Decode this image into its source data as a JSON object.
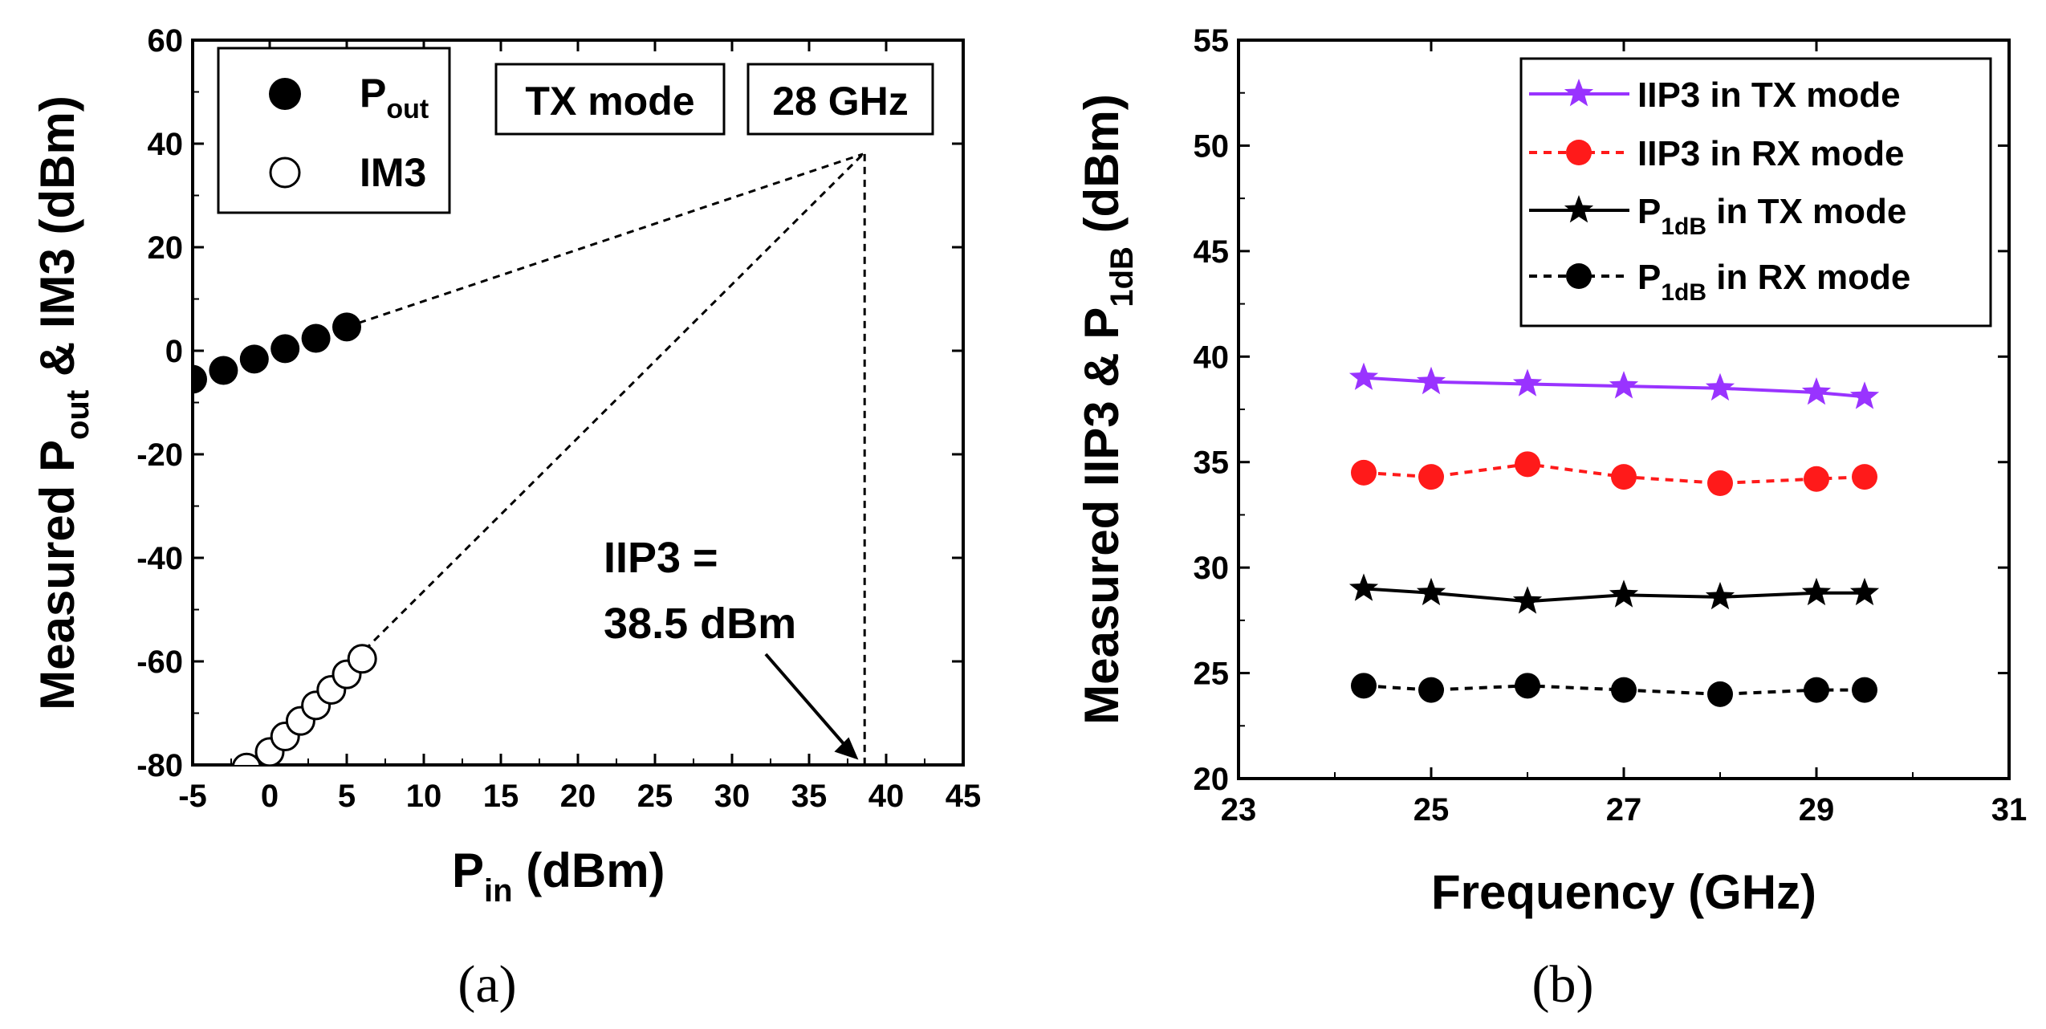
{
  "chart_data": [
    {
      "type": "scatter",
      "caption": "(a)",
      "xlabel": {
        "main": "P",
        "sub": "in",
        "unit": " (dBm)"
      },
      "ylabel": {
        "a": "Measured P",
        "sub": "out",
        "b": " & IM3 (dBm)"
      },
      "xlim": [
        -5,
        45
      ],
      "ylim": [
        -80,
        60
      ],
      "xticks": [
        -5,
        0,
        5,
        10,
        15,
        20,
        25,
        30,
        35,
        40,
        45
      ],
      "yticks": [
        -80,
        -60,
        -40,
        -20,
        0,
        20,
        40,
        60
      ],
      "legend": {
        "placement": "top-left",
        "entries": [
          {
            "main": "P",
            "sub": "out",
            "marker": "filled-circle"
          },
          {
            "main": "IM3",
            "sub": "",
            "marker": "open-circle"
          }
        ]
      },
      "labels_boxed": [
        "TX mode",
        "28 GHz"
      ],
      "series": [
        {
          "name": "Pout",
          "marker": "filled-circle",
          "x": [
            -5,
            -3,
            -1,
            1,
            3,
            5
          ],
          "y": [
            -5.5,
            -3.8,
            -1.6,
            0.4,
            2.4,
            4.6
          ]
        },
        {
          "name": "IM3",
          "marker": "open-circle",
          "x": [
            -1.5,
            0,
            1,
            2,
            3,
            4,
            5,
            6
          ],
          "y": [
            -80.5,
            -77.5,
            -74.5,
            -71.5,
            -68.5,
            -65.5,
            -62.5,
            -59.5
          ]
        }
      ],
      "intercept": {
        "x": 38.5,
        "y": 38
      },
      "annotation": {
        "line1": "IIP3 =",
        "line2": "38.5 dBm",
        "arrow_to": {
          "x": 38.2,
          "y": -79
        }
      }
    },
    {
      "type": "line",
      "caption": "(b)",
      "xlabel": "Frequency (GHz)",
      "ylabel": {
        "a": "Measured IIP3 & P",
        "sub": "1dB",
        "b": " (dBm)"
      },
      "xlim": [
        23,
        31
      ],
      "ylim": [
        20,
        55
      ],
      "xticks": [
        23,
        25,
        27,
        29,
        31
      ],
      "yticks": [
        20,
        25,
        30,
        35,
        40,
        45,
        50,
        55
      ],
      "legend": {
        "placement": "top-right"
      },
      "series": [
        {
          "name": "IIP3 in TX mode",
          "legend_main": "IIP3 in TX mode",
          "legend_sub": "",
          "legend_tail": "",
          "color": "#9933ff",
          "dash": "solid",
          "marker": "star",
          "x": [
            24.3,
            25,
            26,
            27,
            28,
            29,
            29.5
          ],
          "values": [
            39.0,
            38.8,
            38.7,
            38.6,
            38.5,
            38.3,
            38.1
          ]
        },
        {
          "name": "IIP3 in RX mode",
          "legend_main": "IIP3 in RX mode",
          "legend_sub": "",
          "legend_tail": "",
          "color": "#ff1a1a",
          "dash": "dashed",
          "marker": "circle",
          "x": [
            24.3,
            25,
            26,
            27,
            28,
            29,
            29.5
          ],
          "values": [
            34.5,
            34.3,
            34.9,
            34.3,
            34.0,
            34.2,
            34.3
          ]
        },
        {
          "name": "P1dB in TX mode",
          "legend_main": "P",
          "legend_sub": "1dB",
          "legend_tail": " in TX mode",
          "color": "#000000",
          "dash": "solid",
          "marker": "star",
          "x": [
            24.3,
            25,
            26,
            27,
            28,
            29,
            29.5
          ],
          "values": [
            29.0,
            28.8,
            28.4,
            28.7,
            28.6,
            28.8,
            28.8
          ]
        },
        {
          "name": "P1dB in RX mode",
          "legend_main": "P",
          "legend_sub": "1dB",
          "legend_tail": " in RX mode",
          "color": "#000000",
          "dash": "dashed",
          "marker": "circle",
          "x": [
            24.3,
            25,
            26,
            27,
            28,
            29,
            29.5
          ],
          "values": [
            24.4,
            24.2,
            24.4,
            24.2,
            24.0,
            24.2,
            24.2
          ]
        }
      ]
    }
  ]
}
